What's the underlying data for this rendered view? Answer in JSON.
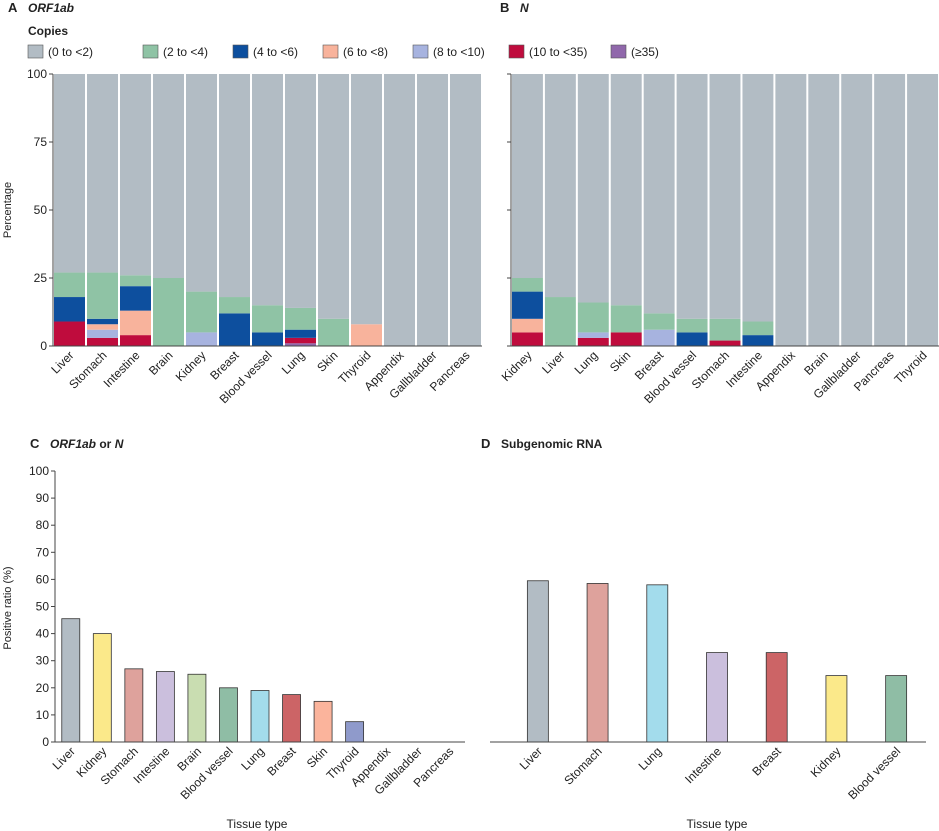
{
  "chart_data": [
    {
      "type": "bar",
      "panel_letter": "A",
      "title": "ORF1ab",
      "ylabel": "Percentage",
      "ylim": [
        0,
        100
      ],
      "yticks": [
        0,
        25,
        50,
        75,
        100
      ],
      "stacked": true,
      "categories": [
        "Liver",
        "Stomach",
        "Intestine",
        "Brain",
        "Kidney",
        "Breast",
        "Blood vessel",
        "Lung",
        "Skin",
        "Thyroid",
        "Appendix",
        "Gallbladder",
        "Pancreas"
      ],
      "series": [
        {
          "name": "(≥35)",
          "values": [
            0,
            0,
            0,
            0,
            0,
            0,
            0,
            1,
            0,
            0,
            0,
            0,
            0
          ]
        },
        {
          "name": "(10 to <35)",
          "values": [
            9,
            3,
            4,
            0,
            0,
            0,
            0,
            2,
            0,
            0,
            0,
            0,
            0
          ]
        },
        {
          "name": "(8 to <10)",
          "values": [
            0,
            3,
            0,
            0,
            5,
            0,
            0,
            0,
            0,
            0,
            0,
            0,
            0
          ]
        },
        {
          "name": "(6 to <8)",
          "values": [
            0,
            2,
            9,
            0,
            0,
            0,
            0,
            0,
            0,
            8,
            0,
            0,
            0
          ]
        },
        {
          "name": "(4 to <6)",
          "values": [
            9,
            2,
            9,
            0,
            0,
            12,
            5,
            3,
            0,
            0,
            0,
            0,
            0
          ]
        },
        {
          "name": "(2 to <4)",
          "values": [
            9,
            17,
            4,
            25,
            15,
            6,
            10,
            8,
            10,
            0,
            0,
            0,
            0
          ]
        },
        {
          "name": "(0 to <2)",
          "values": [
            73,
            73,
            74,
            75,
            80,
            82,
            85,
            86,
            90,
            92,
            100,
            100,
            100
          ]
        }
      ]
    },
    {
      "type": "bar",
      "panel_letter": "B",
      "title": "N",
      "ylim": [
        0,
        100
      ],
      "yticks": [
        0,
        25,
        50,
        75,
        100
      ],
      "stacked": true,
      "categories": [
        "Kidney",
        "Liver",
        "Lung",
        "Skin",
        "Breast",
        "Blood vessel",
        "Stomach",
        "Intestine",
        "Appendix",
        "Brain",
        "Gallbladder",
        "Pancreas",
        "Thyroid"
      ],
      "series": [
        {
          "name": "(≥35)",
          "values": [
            0,
            0,
            0,
            0,
            0,
            0,
            0,
            0,
            0,
            0,
            0,
            0,
            0
          ]
        },
        {
          "name": "(10 to <35)",
          "values": [
            5,
            0,
            3,
            5,
            0,
            0,
            2,
            0,
            0,
            0,
            0,
            0,
            0
          ]
        },
        {
          "name": "(8 to <10)",
          "values": [
            0,
            0,
            2,
            0,
            6,
            0,
            0,
            0,
            0,
            0,
            0,
            0,
            0
          ]
        },
        {
          "name": "(6 to <8)",
          "values": [
            5,
            0,
            0,
            0,
            0,
            0,
            0,
            0,
            0,
            0,
            0,
            0,
            0
          ]
        },
        {
          "name": "(4 to <6)",
          "values": [
            10,
            0,
            0,
            0,
            0,
            5,
            0,
            4,
            0,
            0,
            0,
            0,
            0
          ]
        },
        {
          "name": "(2 to <4)",
          "values": [
            5,
            18,
            11,
            10,
            6,
            5,
            8,
            5,
            0,
            0,
            0,
            0,
            0
          ]
        },
        {
          "name": "(0 to <2)",
          "values": [
            75,
            82,
            84,
            85,
            88,
            90,
            90,
            91,
            100,
            100,
            100,
            100,
            100
          ]
        }
      ]
    },
    {
      "type": "bar",
      "panel_letter": "C",
      "title": "ORF1ab or N",
      "title_parts": [
        "ORF1ab",
        " or ",
        "N"
      ],
      "ylabel": "Positive ratio (%)",
      "xlabel": "Tissue type",
      "ylim": [
        0,
        100
      ],
      "yticks": [
        0,
        10,
        20,
        30,
        40,
        50,
        60,
        70,
        80,
        90,
        100
      ],
      "categories": [
        "Liver",
        "Kidney",
        "Stomach",
        "Intestine",
        "Brain",
        "Blood vessel",
        "Lung",
        "Breast",
        "Skin",
        "Thyroid",
        "Appendix",
        "Gallbladder",
        "Pancreas"
      ],
      "values": [
        45.5,
        40,
        27,
        26,
        25,
        20,
        19,
        17.5,
        15,
        7.5,
        0,
        0,
        0
      ],
      "colors": [
        "#b2bcc4",
        "#fbe98a",
        "#dea29c",
        "#cbbfdd",
        "#c9ddb1",
        "#8fbda5",
        "#a3dcec",
        "#cc6466",
        "#fbb49c",
        "#8f9acb",
        "#ffffff",
        "#ffffff",
        "#ffffff"
      ]
    },
    {
      "type": "bar",
      "panel_letter": "D",
      "title": "Subgenomic RNA",
      "xlabel": "Tissue type",
      "ylim": [
        0,
        100
      ],
      "categories": [
        "Liver",
        "Stomach",
        "Lung",
        "Intestine",
        "Breast",
        "Kidney",
        "Blood vessel"
      ],
      "values": [
        59.5,
        58.5,
        58,
        33,
        33,
        24.5,
        24.5
      ],
      "colors": [
        "#b2bcc4",
        "#dea29c",
        "#a3dcec",
        "#cbbfdd",
        "#cc6466",
        "#fbe98a",
        "#8fbda5"
      ]
    }
  ],
  "legend": {
    "title": "Copies",
    "items": [
      {
        "label": "(0 to <2)",
        "color": "#b2bcc4"
      },
      {
        "label": "(2 to <4)",
        "color": "#8fc3a5"
      },
      {
        "label": "(4 to <6)",
        "color": "#0d4f9e"
      },
      {
        "label": "(6 to <8)",
        "color": "#f8b39c"
      },
      {
        "label": "(8 to <10)",
        "color": "#a7b3df"
      },
      {
        "label": "(10 to <35)",
        "color": "#bf0c3d"
      },
      {
        "label": "(≥35)",
        "color": "#9068ab"
      }
    ]
  }
}
